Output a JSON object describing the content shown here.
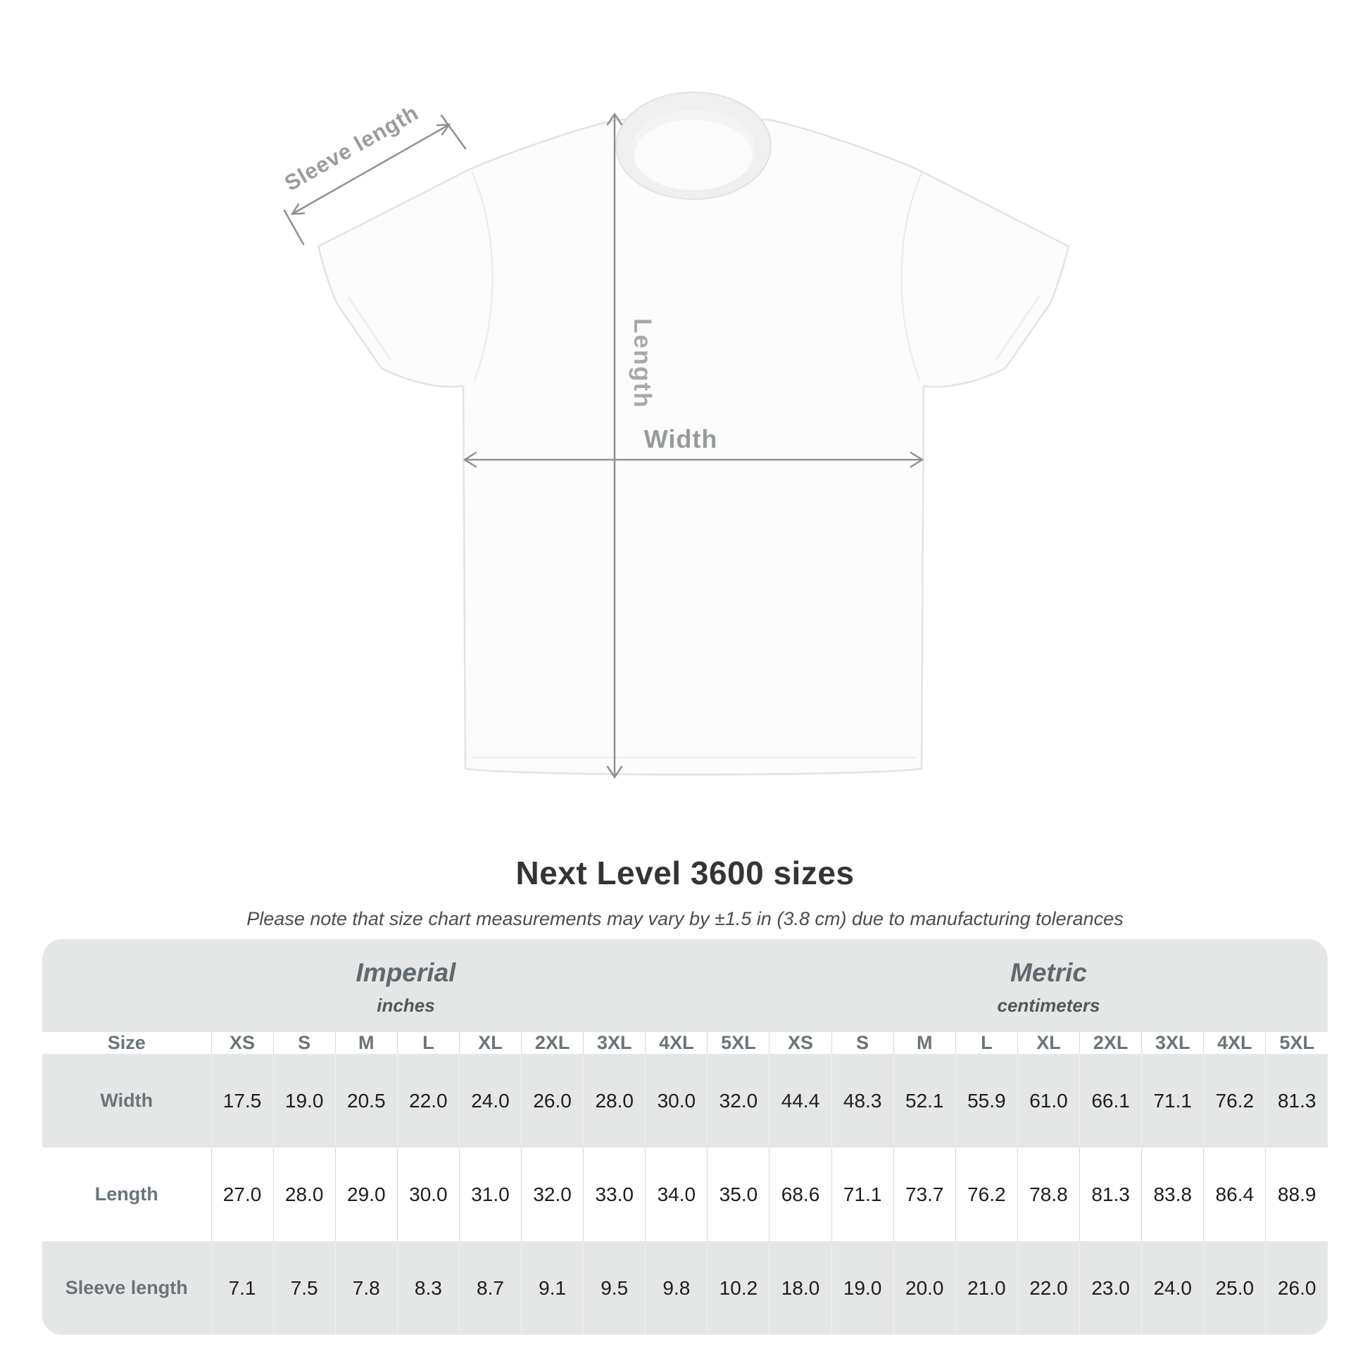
{
  "diagram": {
    "labels": {
      "sleeve": "Sleeve length",
      "length": "Length",
      "width": "Width"
    },
    "colors": {
      "arrow": "#8e9193",
      "label_gray": "#9b9b9b",
      "shirt_fill": "#fcfcfc",
      "shirt_outline": "#e3e3e3"
    }
  },
  "heading": {
    "title": "Next Level 3600 sizes",
    "note": "Please note that size chart measurements may vary by ±1.5 in (3.8 cm) due to manufacturing tolerances"
  },
  "table": {
    "corner_label": "Size",
    "groups": [
      {
        "label": "Imperial",
        "sublabel": "inches"
      },
      {
        "label": "Metric",
        "sublabel": "centimeters"
      }
    ],
    "size_headers": [
      "XS",
      "S",
      "M",
      "L",
      "XL",
      "2XL",
      "3XL",
      "4XL",
      "5XL",
      "XS",
      "S",
      "M",
      "L",
      "XL",
      "2XL",
      "3XL",
      "4XL",
      "5XL"
    ],
    "rows": [
      {
        "label": "Width",
        "values": [
          "17.5",
          "19.0",
          "20.5",
          "22.0",
          "24.0",
          "26.0",
          "28.0",
          "30.0",
          "32.0",
          "44.4",
          "48.3",
          "52.1",
          "55.9",
          "61.0",
          "66.1",
          "71.1",
          "76.2",
          "81.3"
        ]
      },
      {
        "label": "Length",
        "values": [
          "27.0",
          "28.0",
          "29.0",
          "30.0",
          "31.0",
          "32.0",
          "33.0",
          "34.0",
          "35.0",
          "68.6",
          "71.1",
          "73.7",
          "76.2",
          "78.8",
          "81.3",
          "83.8",
          "86.4",
          "88.9"
        ]
      },
      {
        "label": "Sleeve length",
        "values": [
          "7.1",
          "7.5",
          "7.8",
          "8.3",
          "8.7",
          "9.1",
          "9.5",
          "9.8",
          "10.2",
          "18.0",
          "19.0",
          "20.0",
          "21.0",
          "22.0",
          "23.0",
          "24.0",
          "25.0",
          "26.0"
        ]
      }
    ]
  }
}
